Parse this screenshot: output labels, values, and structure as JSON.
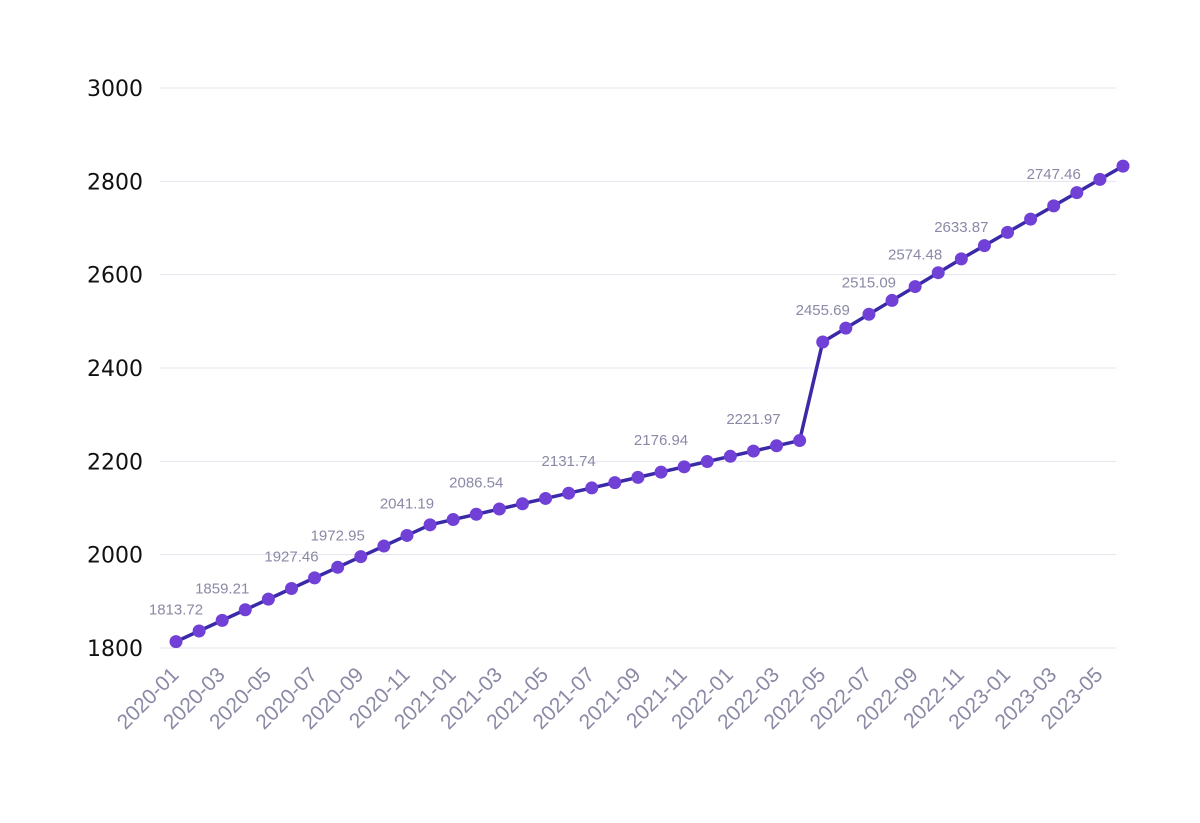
{
  "chart_data": {
    "type": "line",
    "title": "",
    "xlabel": "",
    "ylabel": "",
    "ylim": [
      1800,
      3000
    ],
    "yticks": [
      "1800",
      "2000",
      "2200",
      "2400",
      "2600",
      "2800",
      "3000"
    ],
    "xticks": [
      "2020-01",
      "2020-03",
      "2020-05",
      "2020-07",
      "2020-09",
      "2020-11",
      "2021-01",
      "2021-03",
      "2021-05",
      "2021-07",
      "2021-09",
      "2021-11",
      "2022-01",
      "2022-03",
      "2022-05",
      "2022-07",
      "2022-09",
      "2022-11",
      "2023-01",
      "2023-03",
      "2023-05"
    ],
    "grid": true,
    "legend": "none",
    "colors": {
      "line": "#3b2aa8",
      "marker": "#7140d6",
      "tick_x": "#8a89a6",
      "tick_y": "#111111",
      "grid": "#e3e3ef"
    },
    "x": [
      "2020-01",
      "2020-02",
      "2020-03",
      "2020-04",
      "2020-05",
      "2020-06",
      "2020-07",
      "2020-08",
      "2020-09",
      "2020-10",
      "2020-11",
      "2020-12",
      "2021-01",
      "2021-02",
      "2021-03",
      "2021-04",
      "2021-05",
      "2021-06",
      "2021-07",
      "2021-08",
      "2021-09",
      "2021-10",
      "2021-11",
      "2021-12",
      "2022-01",
      "2022-02",
      "2022-03",
      "2022-04",
      "2022-05",
      "2022-06",
      "2022-07",
      "2022-08",
      "2022-09",
      "2022-10",
      "2022-11",
      "2022-12",
      "2023-01",
      "2023-02",
      "2023-03",
      "2023-04",
      "2023-05",
      "2023-06"
    ],
    "series": [
      {
        "values": [
          1813.72,
          1836.47,
          1859.21,
          1881.96,
          1904.71,
          1927.46,
          1950.21,
          1972.95,
          1995.7,
          2018.45,
          2041.19,
          2063.94,
          2075.28,
          2086.54,
          2097.84,
          2109.14,
          2120.44,
          2131.74,
          2143.04,
          2154.34,
          2165.64,
          2176.94,
          2188.22,
          2199.52,
          2210.82,
          2221.97,
          2233.27,
          2244.57,
          2455.69,
          2485.39,
          2515.09,
          2544.79,
          2574.48,
          2604.18,
          2633.87,
          2662.27,
          2690.67,
          2719.07,
          2747.46,
          2775.86,
          2804.26,
          2832.66
        ],
        "labels": [
          {
            "index": 0,
            "text": "1813.72"
          },
          {
            "index": 2,
            "text": "1859.21"
          },
          {
            "index": 5,
            "text": "1927.46"
          },
          {
            "index": 7,
            "text": "1972.95"
          },
          {
            "index": 10,
            "text": "2041.19"
          },
          {
            "index": 13,
            "text": "2086.54"
          },
          {
            "index": 17,
            "text": "2131.74"
          },
          {
            "index": 21,
            "text": "2176.94"
          },
          {
            "index": 25,
            "text": "2221.97"
          },
          {
            "index": 28,
            "text": "2455.69"
          },
          {
            "index": 30,
            "text": "2515.09"
          },
          {
            "index": 32,
            "text": "2574.48"
          },
          {
            "index": 34,
            "text": "2633.87"
          },
          {
            "index": 38,
            "text": "2747.46"
          }
        ]
      }
    ]
  }
}
